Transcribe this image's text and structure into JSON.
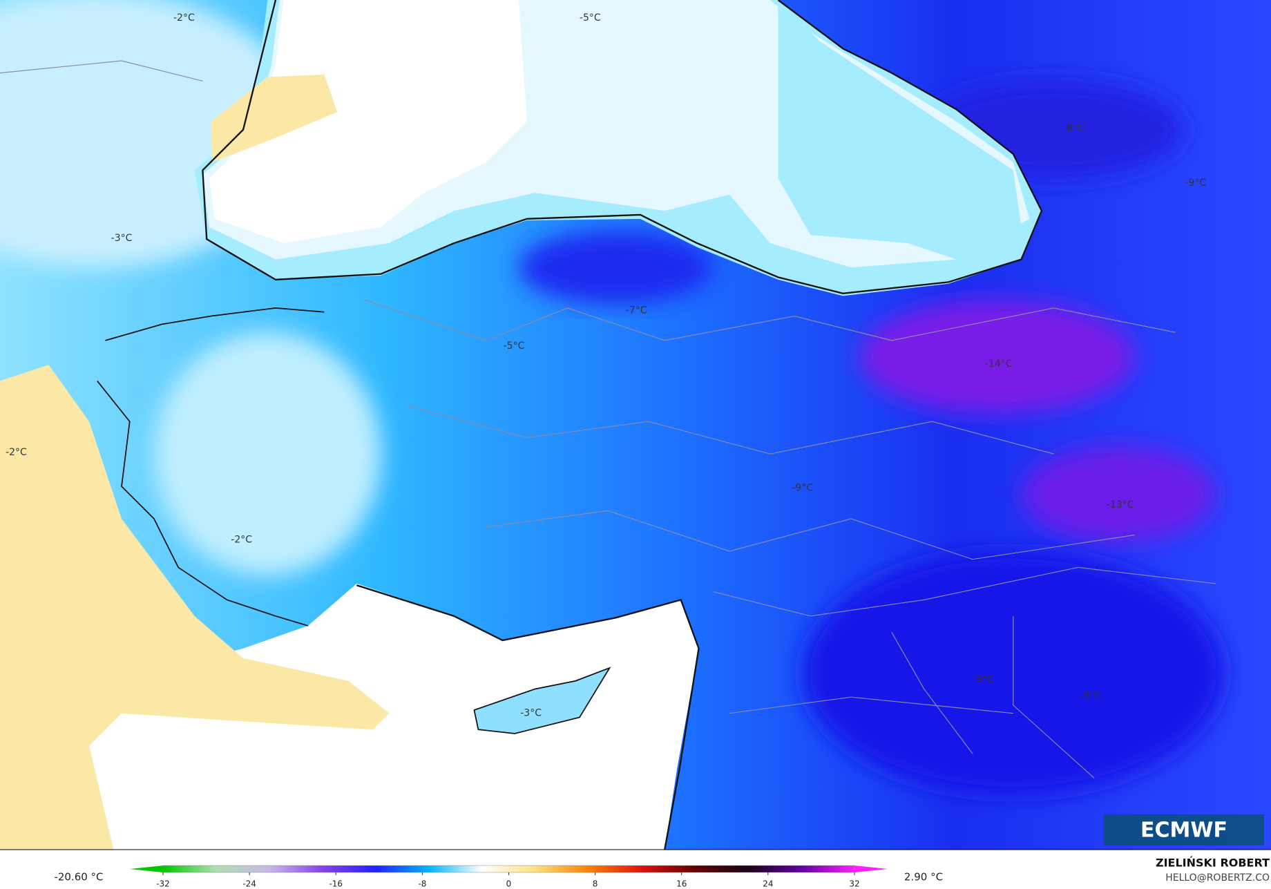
{
  "map": {
    "labels": [
      "-2°C",
      "-5°C",
      "-8°C",
      "-9°C",
      "-3°C",
      "-7°C",
      "-5°C",
      "-14°C",
      "-2°C",
      "-9°C",
      "-13°C",
      "-2°C",
      "-9°C",
      "-9°C",
      "-3°C"
    ]
  },
  "colorbar": {
    "min_label": "-20.60 °C",
    "max_label": "2.90 °C",
    "range": [
      -32,
      32
    ],
    "ticks": [
      -32,
      -24,
      -16,
      -8,
      0,
      8,
      16,
      24,
      32
    ],
    "colors": [
      "#00c800",
      "#b0e0b0",
      "#c8b8e8",
      "#8a40e8",
      "#2020ff",
      "#00b4ff",
      "#ffffff",
      "#ffe080",
      "#ff8000",
      "#e01010",
      "#600000",
      "#1a0018",
      "#6000a0",
      "#ff20ff"
    ]
  },
  "logo": "ECMWF",
  "credit": {
    "name": "ZIELIŃSKI ROBERT",
    "email": "HELLO@ROBERTZ.CO"
  }
}
